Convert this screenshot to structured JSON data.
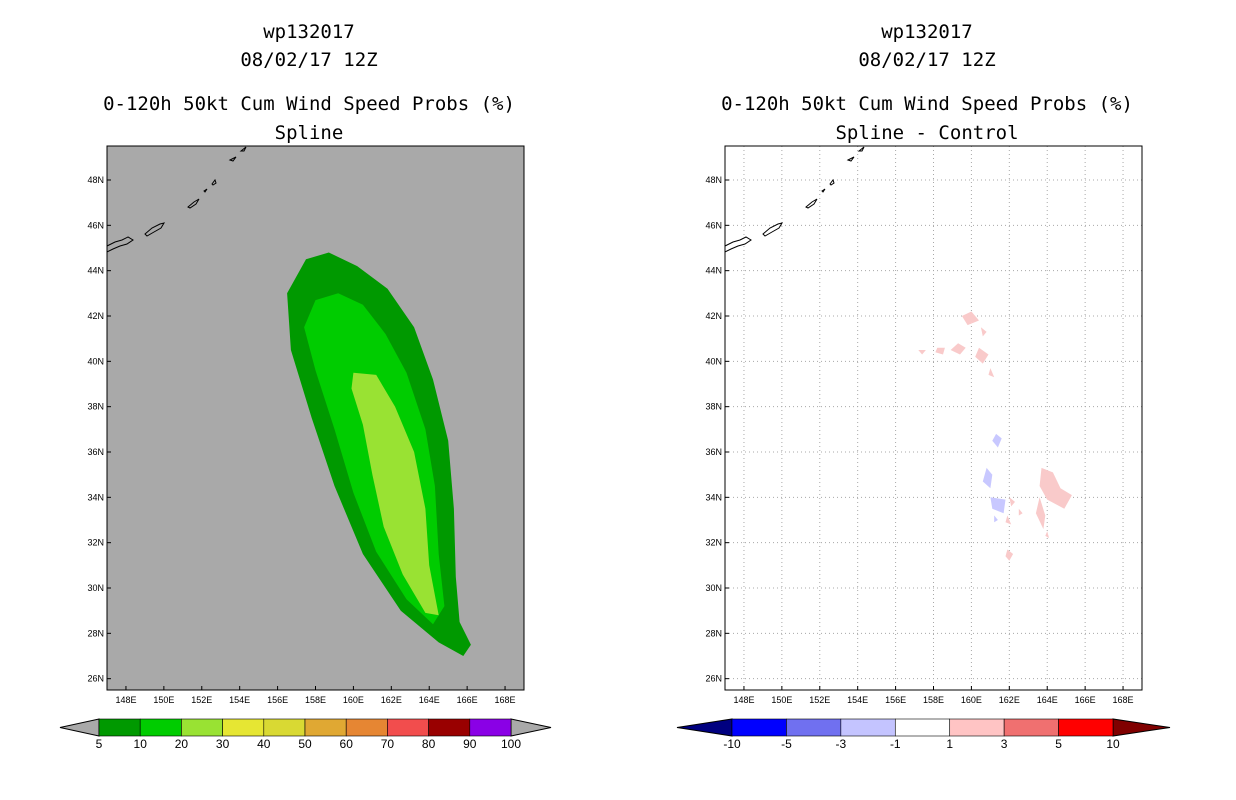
{
  "chart_data": [
    {
      "type": "heatmap",
      "title_lines": [
        "wp132017",
        "08/02/17 12Z",
        "0-120h 50kt Cum Wind Speed Probs (%)",
        "Spline"
      ],
      "xticks": [
        "148E",
        "150E",
        "152E",
        "154E",
        "156E",
        "158E",
        "160E",
        "162E",
        "164E",
        "166E",
        "168E"
      ],
      "yticks": [
        "48N",
        "46N",
        "44N",
        "42N",
        "40N",
        "38N",
        "36N",
        "34N",
        "32N",
        "30N",
        "28N",
        "26N"
      ],
      "xlim": [
        147,
        169
      ],
      "ylim": [
        25.5,
        49.5
      ],
      "background_color": "#a9a9a9",
      "colorbar": {
        "labels": [
          "5",
          "10",
          "20",
          "30",
          "40",
          "50",
          "60",
          "70",
          "80",
          "90",
          "100"
        ],
        "colors": [
          "#009900",
          "#00cc00",
          "#99e233",
          "#e6e633",
          "#d9d933",
          "#e0a833",
          "#e68633",
          "#f24d4d",
          "#990000",
          "#8a00e6"
        ]
      },
      "contours": [
        {
          "level": "5-10",
          "color": "#009900",
          "points": [
            [
              158.7,
              44.8
            ],
            [
              160.2,
              44.2
            ],
            [
              161.8,
              43.2
            ],
            [
              163.2,
              41.5
            ],
            [
              164.2,
              39.2
            ],
            [
              165.0,
              36.5
            ],
            [
              165.3,
              33.5
            ],
            [
              165.4,
              30.5
            ],
            [
              165.6,
              28.5
            ],
            [
              166.2,
              27.5
            ],
            [
              165.8,
              27.0
            ],
            [
              164.5,
              27.6
            ],
            [
              162.5,
              29.0
            ],
            [
              160.5,
              31.5
            ],
            [
              159.0,
              34.5
            ],
            [
              157.8,
              37.5
            ],
            [
              156.7,
              40.5
            ],
            [
              156.5,
              43.0
            ],
            [
              157.5,
              44.5
            ]
          ]
        },
        {
          "level": "10-20",
          "color": "#00cc00",
          "points": [
            [
              159.2,
              43.0
            ],
            [
              160.5,
              42.5
            ],
            [
              161.7,
              41.2
            ],
            [
              162.8,
              39.5
            ],
            [
              163.8,
              37.0
            ],
            [
              164.3,
              34.5
            ],
            [
              164.5,
              31.5
            ],
            [
              164.8,
              29.2
            ],
            [
              164.2,
              28.4
            ],
            [
              162.8,
              29.5
            ],
            [
              161.2,
              31.6
            ],
            [
              160.0,
              34.2
            ],
            [
              159.0,
              37.0
            ],
            [
              158.0,
              39.6
            ],
            [
              157.4,
              41.5
            ],
            [
              158.0,
              42.7
            ]
          ]
        },
        {
          "level": "20-30",
          "color": "#99e233",
          "points": [
            [
              160.0,
              39.5
            ],
            [
              161.2,
              39.4
            ],
            [
              162.2,
              38.0
            ],
            [
              163.2,
              36.0
            ],
            [
              163.8,
              33.5
            ],
            [
              164.0,
              31.0
            ],
            [
              164.5,
              28.8
            ],
            [
              163.8,
              28.9
            ],
            [
              162.6,
              30.6
            ],
            [
              161.6,
              32.7
            ],
            [
              161.0,
              35.0
            ],
            [
              160.5,
              37.2
            ],
            [
              159.9,
              38.8
            ]
          ]
        }
      ]
    },
    {
      "type": "heatmap",
      "title_lines": [
        "wp132017",
        "08/02/17 12Z",
        "0-120h 50kt Cum Wind Speed Probs (%)",
        "Spline - Control"
      ],
      "xticks": [
        "148E",
        "150E",
        "152E",
        "154E",
        "156E",
        "158E",
        "160E",
        "162E",
        "164E",
        "166E",
        "168E"
      ],
      "yticks": [
        "48N",
        "46N",
        "44N",
        "42N",
        "40N",
        "38N",
        "36N",
        "34N",
        "32N",
        "30N",
        "28N",
        "26N"
      ],
      "xlim": [
        147,
        169
      ],
      "ylim": [
        25.5,
        49.5
      ],
      "background_color": "#ffffff",
      "colorbar": {
        "labels": [
          "-10",
          "-5",
          "-3",
          "-1",
          "1",
          "3",
          "5",
          "10"
        ],
        "colors": [
          "#000080",
          "#0000ff",
          "#7070f0",
          "#c4c4ff",
          "#ffffff",
          "#ffc4c4",
          "#f07070",
          "#ff0000",
          "#800000"
        ]
      },
      "contours": [
        {
          "level": "1-3",
          "color": "#f9caca",
          "points": [
            [
              159.5,
              42.0
            ],
            [
              160.0,
              42.2
            ],
            [
              160.4,
              41.8
            ],
            [
              159.8,
              41.6
            ]
          ]
        },
        {
          "level": "1-3",
          "color": "#f9caca",
          "points": [
            [
              160.5,
              41.5
            ],
            [
              160.8,
              41.3
            ],
            [
              160.6,
              41.1
            ]
          ]
        },
        {
          "level": "1-3",
          "color": "#f9caca",
          "points": [
            [
              159.3,
              40.8
            ],
            [
              159.7,
              40.6
            ],
            [
              159.4,
              40.3
            ],
            [
              158.9,
              40.5
            ]
          ]
        },
        {
          "level": "1-3",
          "color": "#f9caca",
          "points": [
            [
              158.2,
              40.6
            ],
            [
              158.6,
              40.6
            ],
            [
              158.5,
              40.3
            ],
            [
              158.1,
              40.4
            ]
          ]
        },
        {
          "level": "1-3",
          "color": "#f9caca",
          "points": [
            [
              157.2,
              40.5
            ],
            [
              157.6,
              40.5
            ],
            [
              157.4,
              40.3
            ]
          ]
        },
        {
          "level": "1-3",
          "color": "#f9caca",
          "points": [
            [
              160.4,
              40.6
            ],
            [
              160.9,
              40.3
            ],
            [
              160.6,
              39.9
            ],
            [
              160.2,
              40.2
            ]
          ]
        },
        {
          "level": "1-3",
          "color": "#f9caca",
          "points": [
            [
              161.0,
              39.7
            ],
            [
              161.2,
              39.3
            ],
            [
              160.9,
              39.4
            ]
          ]
        },
        {
          "level": "-3--1",
          "color": "#c8c8ff",
          "points": [
            [
              161.3,
              36.8
            ],
            [
              161.6,
              36.6
            ],
            [
              161.4,
              36.2
            ],
            [
              161.1,
              36.5
            ]
          ]
        },
        {
          "level": "-3--1",
          "color": "#c8c8ff",
          "points": [
            [
              160.8,
              35.3
            ],
            [
              161.1,
              35.0
            ],
            [
              161.0,
              34.4
            ],
            [
              160.6,
              34.7
            ]
          ]
        },
        {
          "level": "-3--1",
          "color": "#c8c8ff",
          "points": [
            [
              161.0,
              34.0
            ],
            [
              161.8,
              33.9
            ],
            [
              161.7,
              33.3
            ],
            [
              161.1,
              33.5
            ]
          ]
        },
        {
          "level": "-3--1",
          "color": "#c8c8ff",
          "points": [
            [
              161.2,
              33.2
            ],
            [
              161.4,
              33.0
            ],
            [
              161.2,
              32.9
            ]
          ]
        },
        {
          "level": "1-3",
          "color": "#f9caca",
          "points": [
            [
              163.7,
              35.3
            ],
            [
              164.3,
              35.1
            ],
            [
              164.7,
              34.4
            ],
            [
              165.3,
              34.1
            ],
            [
              164.9,
              33.5
            ],
            [
              164.0,
              33.9
            ],
            [
              163.6,
              34.5
            ]
          ]
        },
        {
          "level": "1-3",
          "color": "#f9caca",
          "points": [
            [
              163.6,
              34.0
            ],
            [
              163.9,
              33.2
            ],
            [
              163.8,
              32.6
            ],
            [
              163.4,
              33.3
            ]
          ]
        },
        {
          "level": "1-3",
          "color": "#f9caca",
          "points": [
            [
              162.0,
              34.0
            ],
            [
              162.3,
              33.8
            ],
            [
              162.1,
              33.6
            ]
          ]
        },
        {
          "level": "1-3",
          "color": "#f9caca",
          "points": [
            [
              161.9,
              33.2
            ],
            [
              162.1,
              32.8
            ],
            [
              161.8,
              32.9
            ]
          ]
        },
        {
          "level": "1-3",
          "color": "#f9caca",
          "points": [
            [
              162.5,
              33.5
            ],
            [
              162.7,
              33.3
            ],
            [
              162.5,
              33.2
            ]
          ]
        },
        {
          "level": "1-3",
          "color": "#f9caca",
          "points": [
            [
              164.0,
              32.5
            ],
            [
              164.1,
              32.2
            ],
            [
              163.9,
              32.3
            ]
          ]
        },
        {
          "level": "1-3",
          "color": "#f9caca",
          "points": [
            [
              161.9,
              31.7
            ],
            [
              162.2,
              31.5
            ],
            [
              162.0,
              31.2
            ],
            [
              161.8,
              31.4
            ]
          ]
        }
      ]
    }
  ]
}
